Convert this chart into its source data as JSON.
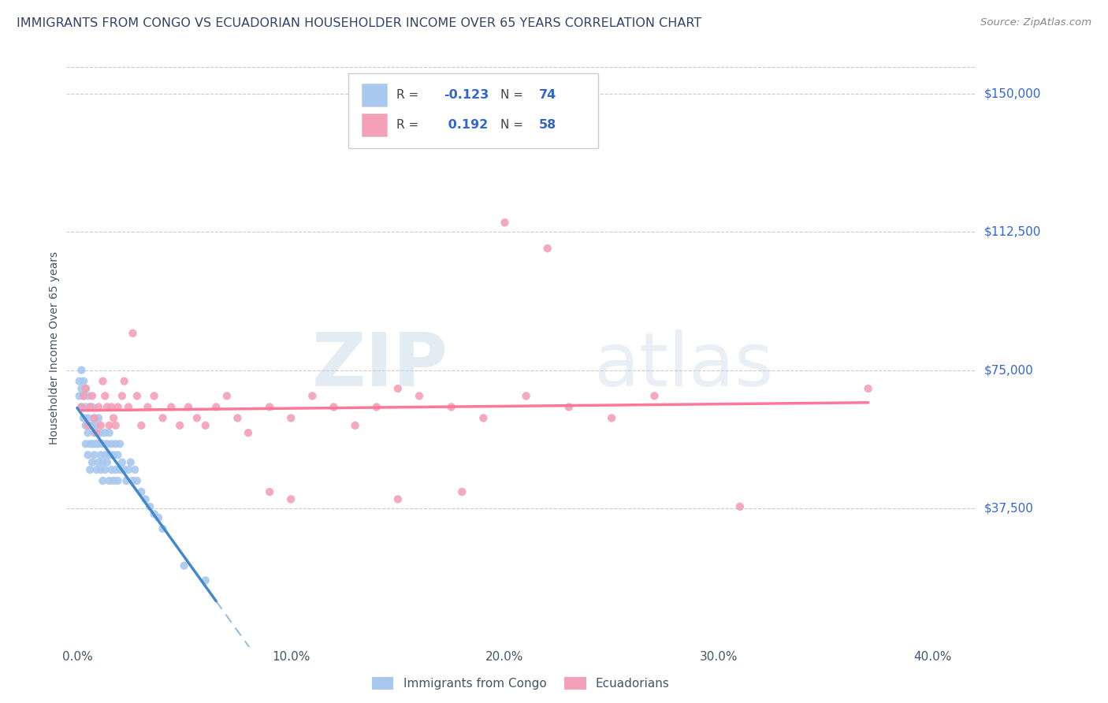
{
  "title": "IMMIGRANTS FROM CONGO VS ECUADORIAN HOUSEHOLDER INCOME OVER 65 YEARS CORRELATION CHART",
  "source": "Source: ZipAtlas.com",
  "ylabel": "Householder Income Over 65 years",
  "xlabel_ticks": [
    "0.0%",
    "10.0%",
    "20.0%",
    "30.0%",
    "40.0%"
  ],
  "xlabel_vals": [
    0.0,
    0.1,
    0.2,
    0.3,
    0.4
  ],
  "ytick_labels": [
    "$37,500",
    "$75,000",
    "$112,500",
    "$150,000"
  ],
  "ytick_vals": [
    37500,
    75000,
    112500,
    150000
  ],
  "ylim": [
    0,
    162000
  ],
  "xlim": [
    -0.005,
    0.42
  ],
  "congo_R": -0.123,
  "congo_N": 74,
  "ecuador_R": 0.192,
  "ecuador_N": 58,
  "congo_color": "#a8c8f0",
  "ecuador_color": "#f4a0b8",
  "congo_line_color": "#4488cc",
  "ecuador_line_color": "#ff7799",
  "title_color": "#334466",
  "axis_label_color": "#445566",
  "right_tick_color": "#3366cc",
  "watermark_zip": "ZIP",
  "watermark_atlas": "atlas",
  "background_color": "#ffffff",
  "grid_color": "#cccccc",
  "legend_label_congo": "Immigrants from Congo",
  "legend_label_ecuador": "Ecuadorians",
  "congo_scatter_x": [
    0.001,
    0.001,
    0.002,
    0.002,
    0.002,
    0.003,
    0.003,
    0.003,
    0.004,
    0.004,
    0.004,
    0.004,
    0.005,
    0.005,
    0.005,
    0.005,
    0.006,
    0.006,
    0.006,
    0.006,
    0.007,
    0.007,
    0.007,
    0.007,
    0.008,
    0.008,
    0.008,
    0.008,
    0.009,
    0.009,
    0.009,
    0.01,
    0.01,
    0.01,
    0.011,
    0.011,
    0.011,
    0.012,
    0.012,
    0.012,
    0.013,
    0.013,
    0.013,
    0.014,
    0.014,
    0.015,
    0.015,
    0.015,
    0.016,
    0.016,
    0.017,
    0.017,
    0.018,
    0.018,
    0.019,
    0.019,
    0.02,
    0.02,
    0.021,
    0.022,
    0.023,
    0.024,
    0.025,
    0.026,
    0.027,
    0.028,
    0.03,
    0.032,
    0.034,
    0.036,
    0.038,
    0.04,
    0.05,
    0.06
  ],
  "congo_scatter_y": [
    68000,
    72000,
    65000,
    70000,
    75000,
    62000,
    68000,
    72000,
    55000,
    60000,
    65000,
    70000,
    52000,
    58000,
    62000,
    68000,
    48000,
    55000,
    60000,
    65000,
    50000,
    55000,
    60000,
    65000,
    52000,
    58000,
    62000,
    55000,
    48000,
    55000,
    60000,
    50000,
    55000,
    62000,
    48000,
    52000,
    58000,
    50000,
    55000,
    45000,
    48000,
    52000,
    58000,
    50000,
    55000,
    45000,
    52000,
    58000,
    48000,
    55000,
    45000,
    52000,
    48000,
    55000,
    45000,
    52000,
    48000,
    55000,
    50000,
    48000,
    45000,
    48000,
    50000,
    45000,
    48000,
    45000,
    42000,
    40000,
    38000,
    36000,
    35000,
    32000,
    22000,
    18000
  ],
  "ecuador_scatter_x": [
    0.002,
    0.003,
    0.004,
    0.005,
    0.006,
    0.007,
    0.008,
    0.009,
    0.01,
    0.011,
    0.012,
    0.013,
    0.014,
    0.015,
    0.016,
    0.017,
    0.018,
    0.019,
    0.021,
    0.022,
    0.024,
    0.026,
    0.028,
    0.03,
    0.033,
    0.036,
    0.04,
    0.044,
    0.048,
    0.052,
    0.056,
    0.06,
    0.065,
    0.07,
    0.075,
    0.08,
    0.09,
    0.1,
    0.11,
    0.12,
    0.13,
    0.14,
    0.15,
    0.16,
    0.175,
    0.19,
    0.21,
    0.23,
    0.25,
    0.27,
    0.09,
    0.1,
    0.2,
    0.22,
    0.15,
    0.18,
    0.31,
    0.37
  ],
  "ecuador_scatter_y": [
    65000,
    68000,
    70000,
    60000,
    65000,
    68000,
    62000,
    58000,
    65000,
    60000,
    72000,
    68000,
    65000,
    60000,
    65000,
    62000,
    60000,
    65000,
    68000,
    72000,
    65000,
    85000,
    68000,
    60000,
    65000,
    68000,
    62000,
    65000,
    60000,
    65000,
    62000,
    60000,
    65000,
    68000,
    62000,
    58000,
    65000,
    62000,
    68000,
    65000,
    60000,
    65000,
    70000,
    68000,
    65000,
    62000,
    68000,
    65000,
    62000,
    68000,
    42000,
    40000,
    115000,
    108000,
    40000,
    42000,
    38000,
    70000
  ],
  "congo_line_x0": 0.0,
  "congo_line_x1": 0.065,
  "congo_line_x_dash_end": 0.42,
  "ecuador_line_x0": 0.002,
  "ecuador_line_x1": 0.37
}
